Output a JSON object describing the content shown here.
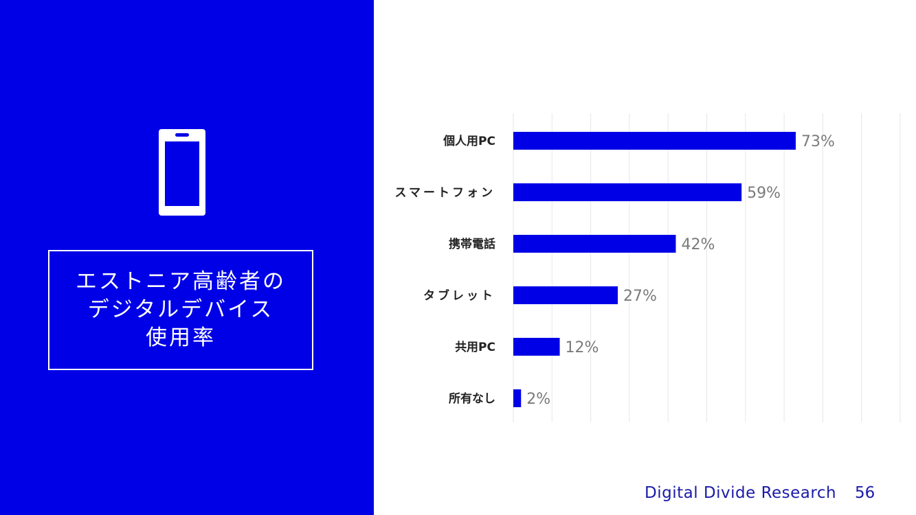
{
  "title_lines": [
    "エストニア高齢者の",
    "デジタルデバイス",
    "使用率"
  ],
  "icon": "smartphone-icon",
  "colors": {
    "panel": "#0000e6",
    "bar": "#0000e6",
    "grid": "#e6e6e6",
    "value_text": "#7a7a7a"
  },
  "chart_data": {
    "type": "bar",
    "orientation": "horizontal",
    "categories": [
      "個人用PC",
      "スマートフォン",
      "携帯電話",
      "タブレット",
      "共用PC",
      "所有なし"
    ],
    "values": [
      73,
      59,
      42,
      27,
      12,
      2
    ],
    "value_labels": [
      "73%",
      "59%",
      "42%",
      "27%",
      "12%",
      "2%"
    ],
    "xlim": [
      0,
      100
    ],
    "grid": true
  },
  "footer": {
    "source": "Digital Divide Research",
    "page": "56"
  }
}
